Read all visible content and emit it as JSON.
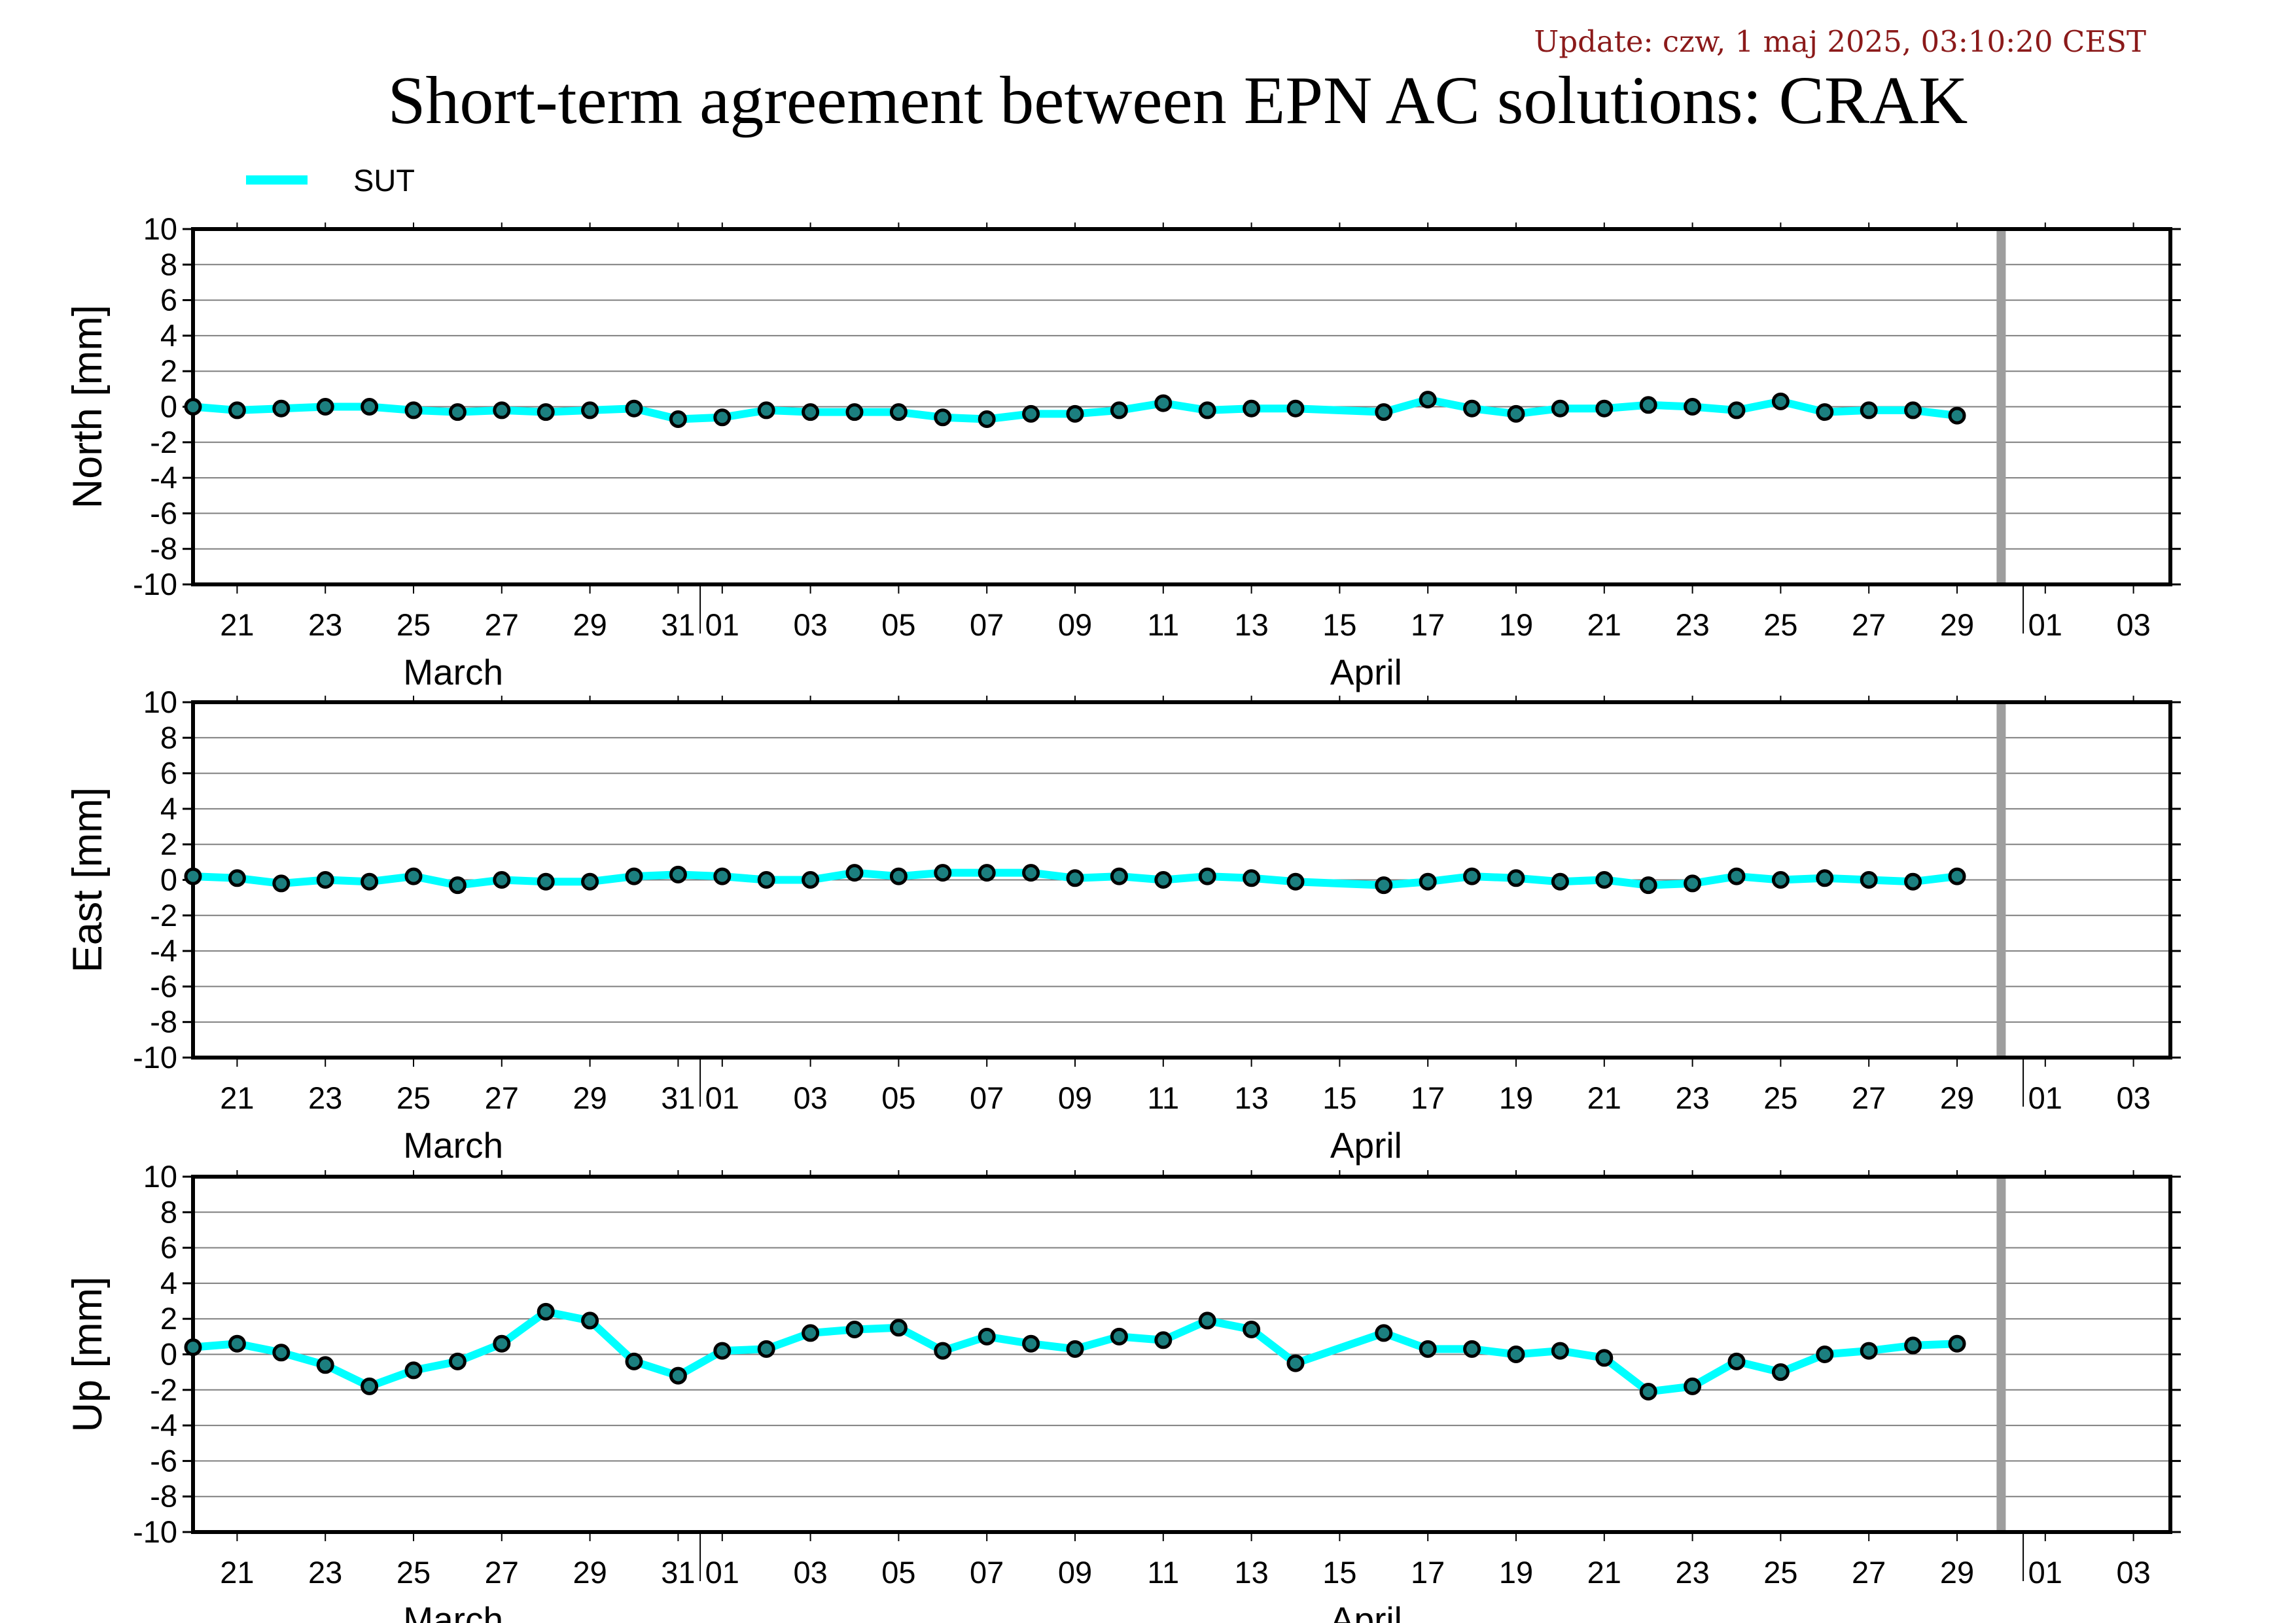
{
  "header": {
    "update": "Update: czw, 1 maj 2025, 03:10:20 CEST",
    "title": "Short-term agreement between EPN AC solutions: CRAK"
  },
  "colors": {
    "series": "#00ffff",
    "marker_fill": "#1c7f7f",
    "marker_stroke": "#000000",
    "grid": "#7f7f7f",
    "today_band": "#9e9e9e"
  },
  "chart_data": [
    {
      "type": "line",
      "ylabel": "North [mm]",
      "ylim": [
        -10,
        10
      ],
      "yticks": [
        10,
        8,
        6,
        4,
        2,
        0,
        -2,
        -4,
        -6,
        -8,
        -10
      ],
      "grid": true,
      "legend": "top-left",
      "x_ticks": [
        "21",
        "23",
        "25",
        "27",
        "29",
        "31",
        "01",
        "03",
        "05",
        "07",
        "09",
        "11",
        "13",
        "15",
        "17",
        "19",
        "21",
        "23",
        "25",
        "27",
        "29",
        "01",
        "03"
      ],
      "months": [
        "March",
        "April"
      ],
      "current_marker": "2025-04-30",
      "series": [
        {
          "name": "SUT",
          "x": [
            "2025-03-20",
            "2025-03-21",
            "2025-03-22",
            "2025-03-23",
            "2025-03-24",
            "2025-03-25",
            "2025-03-26",
            "2025-03-27",
            "2025-03-28",
            "2025-03-29",
            "2025-03-30",
            "2025-03-31",
            "2025-04-01",
            "2025-04-02",
            "2025-04-03",
            "2025-04-04",
            "2025-04-05",
            "2025-04-06",
            "2025-04-07",
            "2025-04-08",
            "2025-04-09",
            "2025-04-10",
            "2025-04-11",
            "2025-04-12",
            "2025-04-13",
            "2025-04-14",
            "2025-04-16",
            "2025-04-17",
            "2025-04-18",
            "2025-04-19",
            "2025-04-20",
            "2025-04-21",
            "2025-04-22",
            "2025-04-23",
            "2025-04-24",
            "2025-04-25",
            "2025-04-26",
            "2025-04-27",
            "2025-04-28",
            "2025-04-29"
          ],
          "values": [
            0.0,
            -0.2,
            -0.1,
            0.0,
            0.0,
            -0.2,
            -0.3,
            -0.2,
            -0.3,
            -0.2,
            -0.1,
            -0.7,
            -0.6,
            -0.2,
            -0.3,
            -0.3,
            -0.3,
            -0.6,
            -0.7,
            -0.4,
            -0.4,
            -0.2,
            0.2,
            -0.2,
            -0.1,
            -0.1,
            -0.3,
            0.4,
            -0.1,
            -0.4,
            -0.1,
            -0.1,
            0.1,
            0.0,
            -0.2,
            0.3,
            -0.3,
            -0.2,
            -0.2,
            -0.5
          ]
        }
      ]
    },
    {
      "type": "line",
      "ylabel": "East [mm]",
      "ylim": [
        -10,
        10
      ],
      "yticks": [
        10,
        8,
        6,
        4,
        2,
        0,
        -2,
        -4,
        -6,
        -8,
        -10
      ],
      "grid": true,
      "x_ticks": [
        "21",
        "23",
        "25",
        "27",
        "29",
        "31",
        "01",
        "03",
        "05",
        "07",
        "09",
        "11",
        "13",
        "15",
        "17",
        "19",
        "21",
        "23",
        "25",
        "27",
        "29",
        "01",
        "03"
      ],
      "months": [
        "March",
        "April"
      ],
      "current_marker": "2025-04-30",
      "series": [
        {
          "name": "SUT",
          "x": [
            "2025-03-20",
            "2025-03-21",
            "2025-03-22",
            "2025-03-23",
            "2025-03-24",
            "2025-03-25",
            "2025-03-26",
            "2025-03-27",
            "2025-03-28",
            "2025-03-29",
            "2025-03-30",
            "2025-03-31",
            "2025-04-01",
            "2025-04-02",
            "2025-04-03",
            "2025-04-04",
            "2025-04-05",
            "2025-04-06",
            "2025-04-07",
            "2025-04-08",
            "2025-04-09",
            "2025-04-10",
            "2025-04-11",
            "2025-04-12",
            "2025-04-13",
            "2025-04-14",
            "2025-04-16",
            "2025-04-17",
            "2025-04-18",
            "2025-04-19",
            "2025-04-20",
            "2025-04-21",
            "2025-04-22",
            "2025-04-23",
            "2025-04-24",
            "2025-04-25",
            "2025-04-26",
            "2025-04-27",
            "2025-04-28",
            "2025-04-29"
          ],
          "values": [
            0.2,
            0.1,
            -0.2,
            0.0,
            -0.1,
            0.2,
            -0.3,
            0.0,
            -0.1,
            -0.1,
            0.2,
            0.3,
            0.2,
            0.0,
            0.0,
            0.4,
            0.2,
            0.4,
            0.4,
            0.4,
            0.1,
            0.2,
            0.0,
            0.2,
            0.1,
            -0.1,
            -0.3,
            -0.1,
            0.2,
            0.1,
            -0.1,
            0.0,
            -0.3,
            -0.2,
            0.2,
            0.0,
            0.1,
            0.0,
            -0.1,
            0.2
          ]
        }
      ]
    },
    {
      "type": "line",
      "ylabel": "Up [mm]",
      "ylim": [
        -10,
        10
      ],
      "yticks": [
        10,
        8,
        6,
        4,
        2,
        0,
        -2,
        -4,
        -6,
        -8,
        -10
      ],
      "grid": true,
      "x_ticks": [
        "21",
        "23",
        "25",
        "27",
        "29",
        "31",
        "01",
        "03",
        "05",
        "07",
        "09",
        "11",
        "13",
        "15",
        "17",
        "19",
        "21",
        "23",
        "25",
        "27",
        "29",
        "01",
        "03"
      ],
      "months": [
        "March",
        "April"
      ],
      "current_marker": "2025-04-30",
      "series": [
        {
          "name": "SUT",
          "x": [
            "2025-03-20",
            "2025-03-21",
            "2025-03-22",
            "2025-03-23",
            "2025-03-24",
            "2025-03-25",
            "2025-03-26",
            "2025-03-27",
            "2025-03-28",
            "2025-03-29",
            "2025-03-30",
            "2025-03-31",
            "2025-04-01",
            "2025-04-02",
            "2025-04-03",
            "2025-04-04",
            "2025-04-05",
            "2025-04-06",
            "2025-04-07",
            "2025-04-08",
            "2025-04-09",
            "2025-04-10",
            "2025-04-11",
            "2025-04-12",
            "2025-04-13",
            "2025-04-14",
            "2025-04-16",
            "2025-04-17",
            "2025-04-18",
            "2025-04-19",
            "2025-04-20",
            "2025-04-21",
            "2025-04-22",
            "2025-04-23",
            "2025-04-24",
            "2025-04-25",
            "2025-04-26",
            "2025-04-27",
            "2025-04-28",
            "2025-04-29"
          ],
          "values": [
            0.4,
            0.6,
            0.1,
            -0.6,
            -1.8,
            -0.9,
            -0.4,
            0.6,
            2.4,
            1.9,
            -0.4,
            -1.2,
            0.2,
            0.3,
            1.2,
            1.4,
            1.5,
            0.2,
            1.0,
            0.6,
            0.3,
            1.0,
            0.8,
            1.9,
            1.4,
            -0.5,
            1.2,
            0.3,
            0.3,
            0.0,
            0.2,
            -0.2,
            -2.1,
            -1.8,
            -0.4,
            -1.0,
            0.0,
            0.2,
            0.5,
            0.6
          ]
        }
      ]
    }
  ]
}
